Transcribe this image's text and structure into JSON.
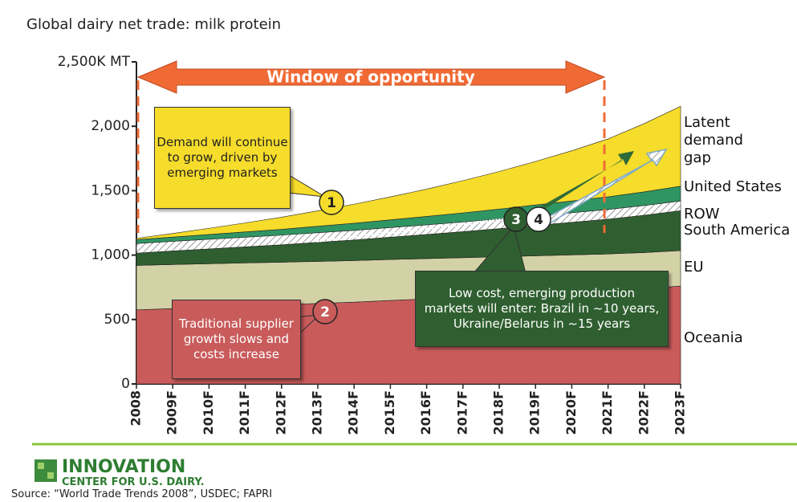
{
  "chart_data": {
    "type": "stacked_area",
    "title": "Global dairy net trade: milk protein",
    "categories": [
      "2008",
      "2009F",
      "2010F",
      "2011F",
      "2012F",
      "2013F",
      "2014F",
      "2015F",
      "2016F",
      "2017F",
      "2018F",
      "2019F",
      "2020F",
      "2021F",
      "2022F",
      "2023F"
    ],
    "ylim": [
      0,
      2500
    ],
    "yticks": [
      0,
      500,
      {
        "value": 1000,
        "label": "1,000"
      },
      {
        "value": 1500,
        "label": "1,500"
      },
      {
        "value": 2000,
        "label": "2,000"
      },
      {
        "value": 2500,
        "label": "2,500K MT"
      }
    ],
    "series": [
      {
        "name": "Oceania",
        "color": "#c95b5b",
        "values": [
          575,
          585,
          595,
          605,
          615,
          625,
          635,
          648,
          660,
          672,
          684,
          697,
          710,
          723,
          740,
          760
        ]
      },
      {
        "name": "EU",
        "color": "#d3d2a6",
        "values": [
          345,
          342,
          338,
          334,
          330,
          326,
          322,
          318,
          313,
          308,
          303,
          298,
          292,
          286,
          280,
          275
        ]
      },
      {
        "name": "South America",
        "color": "#2f5f30",
        "values": [
          95,
          105,
          115,
          125,
          135,
          148,
          160,
          173,
          187,
          202,
          218,
          235,
          252,
          270,
          290,
          310
        ]
      },
      {
        "name": "ROW",
        "color": "#ffffff",
        "pattern": "hatch",
        "values": [
          75,
          75,
          75,
          75,
          75,
          75,
          75,
          75,
          75,
          75,
          75,
          75,
          75,
          75,
          75,
          75
        ]
      },
      {
        "name": "United States",
        "color": "#2f9563",
        "values": [
          30,
          33,
          37,
          41,
          45,
          50,
          55,
          60,
          65,
          71,
          77,
          84,
          91,
          98,
          106,
          115
        ]
      },
      {
        "name": "Latent demand gap",
        "color": "#f6dc2b",
        "values": [
          10,
          28,
          48,
          70,
          94,
          120,
          148,
          178,
          212,
          250,
          292,
          338,
          390,
          450,
          530,
          620
        ]
      }
    ],
    "window_label": "Window of opportunity",
    "callouts": [
      {
        "number": "1",
        "text": "Demand will continue to grow, driven by emerging markets"
      },
      {
        "number": "2",
        "text": "Traditional supplier growth slows and costs increase"
      },
      {
        "number": "3",
        "text": "Low cost, emerging production markets will enter:  Brazil in ~10 years, Ukraine/Belarus in ~15 years"
      },
      {
        "number": "4"
      }
    ],
    "logo": {
      "name": "INNOVATION",
      "sub": "CENTER FOR U.S. DAIRY."
    },
    "source": "Source: “World Trade Trends 2008”, USDEC; FAPRI"
  }
}
